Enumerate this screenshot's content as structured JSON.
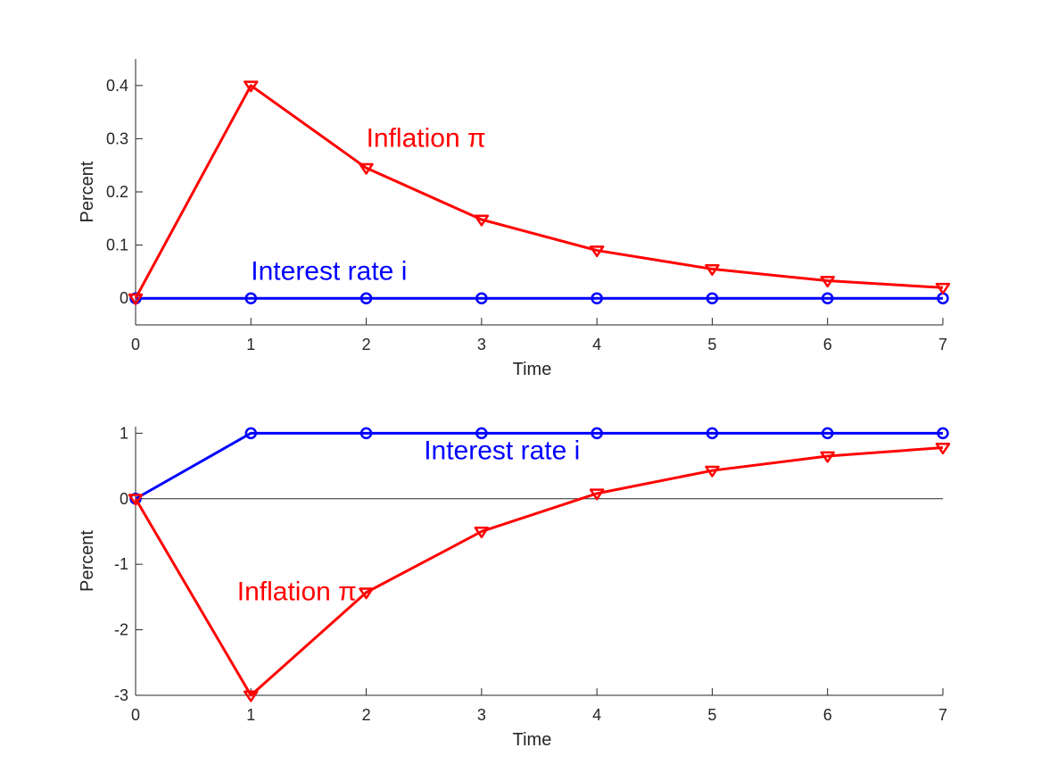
{
  "chart_data": [
    {
      "type": "line",
      "xlabel": "Time",
      "ylabel": "Percent",
      "xlim": [
        0,
        7
      ],
      "ylim": [
        -0.05,
        0.45
      ],
      "xticks": [
        "0",
        "1",
        "2",
        "3",
        "4",
        "5",
        "6",
        "7"
      ],
      "yticks": [
        "0",
        "0.1",
        "0.2",
        "0.3",
        "0.4"
      ],
      "grid": false,
      "zero_line": false,
      "x": [
        0,
        1,
        2,
        3,
        4,
        5,
        6,
        7
      ],
      "series": [
        {
          "color": "#0000ff",
          "marker": "circle",
          "values": [
            0,
            0,
            0,
            0,
            0,
            0,
            0,
            0
          ]
        },
        {
          "color": "#ff0000",
          "marker": "triangle-down",
          "values": [
            0,
            0.4,
            0.245,
            0.148,
            0.09,
            0.055,
            0.033,
            0.02
          ]
        }
      ],
      "annotations": [
        {
          "text": "Interest rate i",
          "color": "#0000ff",
          "x": 1.0,
          "y": 0.035
        },
        {
          "text": "Inflation π",
          "color": "#ff0000",
          "x": 2.0,
          "y": 0.285
        }
      ]
    },
    {
      "type": "line",
      "xlabel": "Time",
      "ylabel": "Percent",
      "xlim": [
        0,
        7
      ],
      "ylim": [
        -3,
        1.1
      ],
      "xticks": [
        "0",
        "1",
        "2",
        "3",
        "4",
        "5",
        "6",
        "7"
      ],
      "yticks": [
        "-3",
        "-2",
        "-1",
        "0",
        "1"
      ],
      "grid": false,
      "zero_line": true,
      "x": [
        0,
        1,
        2,
        3,
        4,
        5,
        6,
        7
      ],
      "series": [
        {
          "color": "#0000ff",
          "marker": "circle",
          "values": [
            0,
            1,
            1,
            1,
            1,
            1,
            1,
            1
          ]
        },
        {
          "color": "#ff0000",
          "marker": "triangle-down",
          "values": [
            0,
            -3.0,
            -1.43,
            -0.5,
            0.08,
            0.43,
            0.65,
            0.78
          ]
        }
      ],
      "annotations": [
        {
          "text": "Interest rate i",
          "color": "#0000ff",
          "x": 2.5,
          "y": 0.6
        },
        {
          "text": "Inflation π",
          "color": "#ff0000",
          "x": 0.88,
          "y": -1.55
        }
      ]
    }
  ]
}
